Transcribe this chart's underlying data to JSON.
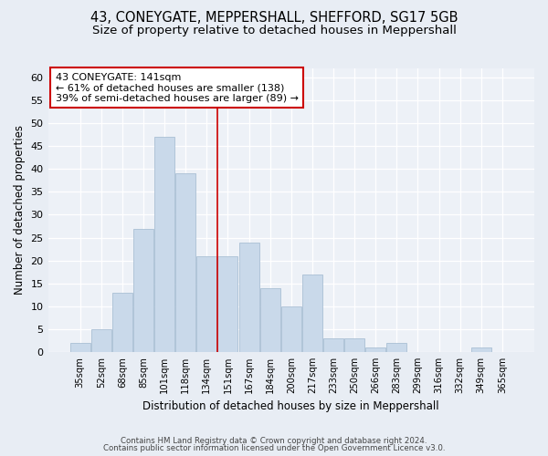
{
  "title1": "43, CONEYGATE, MEPPERSHALL, SHEFFORD, SG17 5GB",
  "title2": "Size of property relative to detached houses in Meppershall",
  "xlabel": "Distribution of detached houses by size in Meppershall",
  "ylabel": "Number of detached properties",
  "footnote1": "Contains HM Land Registry data © Crown copyright and database right 2024.",
  "footnote2": "Contains public sector information licensed under the Open Government Licence v3.0.",
  "categories": [
    "35sqm",
    "52sqm",
    "68sqm",
    "85sqm",
    "101sqm",
    "118sqm",
    "134sqm",
    "151sqm",
    "167sqm",
    "184sqm",
    "200sqm",
    "217sqm",
    "233sqm",
    "250sqm",
    "266sqm",
    "283sqm",
    "299sqm",
    "316sqm",
    "332sqm",
    "349sqm",
    "365sqm"
  ],
  "values": [
    2,
    5,
    13,
    27,
    47,
    39,
    21,
    21,
    24,
    14,
    10,
    17,
    3,
    3,
    1,
    2,
    0,
    0,
    0,
    1,
    0
  ],
  "bar_color": "#c9d9ea",
  "bar_edge_color": "#aabfd4",
  "property_label": "43 CONEYGATE: 141sqm",
  "annotation_line1": "← 61% of detached houses are smaller (138)",
  "annotation_line2": "39% of semi-detached houses are larger (89) →",
  "vline_color": "#cc0000",
  "ylim": [
    0,
    62
  ],
  "yticks": [
    0,
    5,
    10,
    15,
    20,
    25,
    30,
    35,
    40,
    45,
    50,
    55,
    60
  ],
  "bg_color": "#e8edf4",
  "plot_bg_color": "#edf1f7",
  "grid_color": "#ffffff",
  "title1_fontsize": 10.5,
  "title2_fontsize": 9.5,
  "vline_index": 6.5
}
